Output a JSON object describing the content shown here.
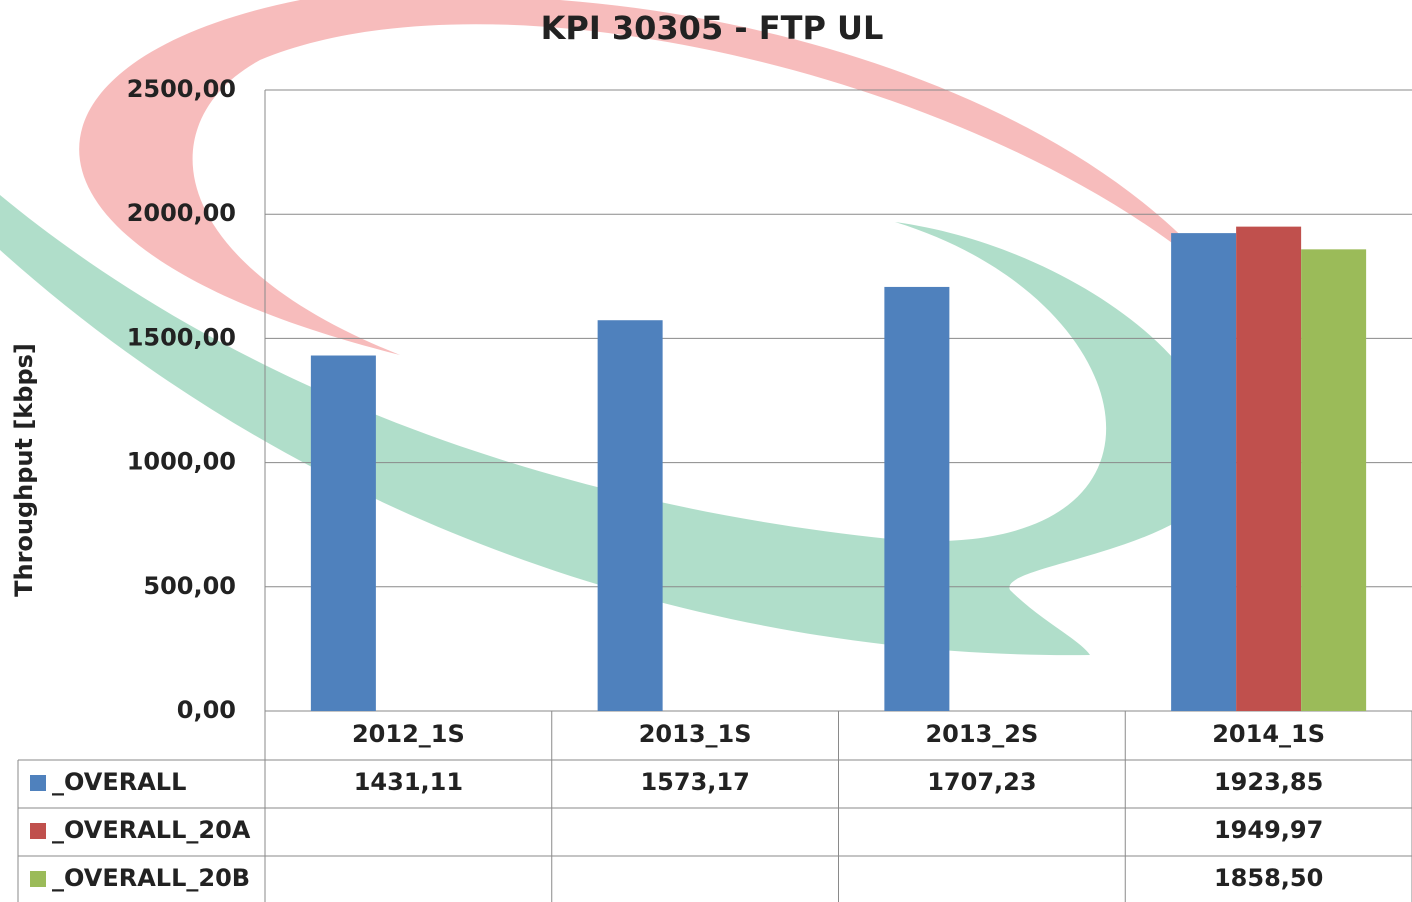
{
  "chart_data": {
    "type": "bar",
    "title": "KPI 30305 - FTP UL",
    "y_label": "Throughput [kbps]",
    "categories": [
      "2012_1S",
      "2013_1S",
      "2013_2S",
      "2014_1S"
    ],
    "series": [
      {
        "name": "_OVERALL",
        "color": "#4f81bd",
        "values": [
          1431.11,
          1573.17,
          1707.23,
          1923.85
        ],
        "value_labels": [
          "1431,11",
          "1573,17",
          "1707,23",
          "1923,85"
        ]
      },
      {
        "name": "_OVERALL_20A",
        "color": "#c0504d",
        "values": [
          null,
          null,
          null,
          1949.97
        ],
        "value_labels": [
          null,
          null,
          null,
          "1949,97"
        ]
      },
      {
        "name": "_OVERALL_20B",
        "color": "#9bbb59",
        "values": [
          null,
          null,
          null,
          1858.5
        ],
        "value_labels": [
          null,
          null,
          null,
          "1858,50"
        ]
      }
    ],
    "ylim": [
      0,
      2500
    ],
    "yticks": [
      {
        "value": 0,
        "label": "0,00"
      },
      {
        "value": 500,
        "label": "500,00"
      },
      {
        "value": 1000,
        "label": "1000,00"
      },
      {
        "value": 1500,
        "label": "1500,00"
      },
      {
        "value": 2000,
        "label": "2000,00"
      },
      {
        "value": 2500,
        "label": "2500,00"
      }
    ],
    "grid": true,
    "data_table": true
  }
}
